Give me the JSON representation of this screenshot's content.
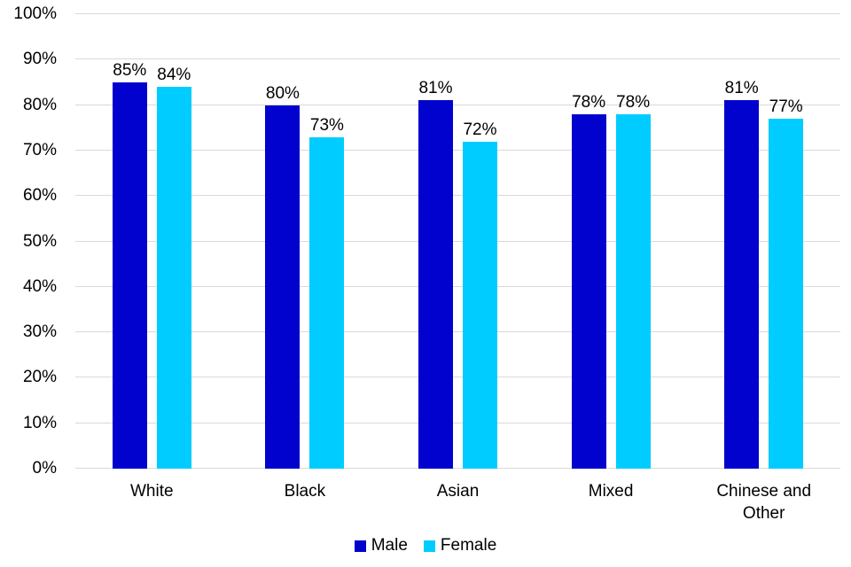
{
  "chart_data": {
    "type": "bar",
    "title": "",
    "categories": [
      "White",
      "Black",
      "Asian",
      "Mixed",
      "Chinese and Other"
    ],
    "series": [
      {
        "name": "Male",
        "color": "#0202CE",
        "values": [
          85,
          80,
          81,
          78,
          81
        ]
      },
      {
        "name": "Female",
        "color": "#00CCFF",
        "values": [
          84,
          73,
          72,
          78,
          77
        ]
      }
    ],
    "data_labels": [
      [
        "85%",
        "80%",
        "81%",
        "78%",
        "81%"
      ],
      [
        "84%",
        "73%",
        "72%",
        "78%",
        "77%"
      ]
    ],
    "value_suffix": "%",
    "y_axis": {
      "min": 0,
      "max": 100,
      "step": 10,
      "tick_labels": [
        "0%",
        "10%",
        "20%",
        "30%",
        "40%",
        "50%",
        "60%",
        "70%",
        "80%",
        "90%",
        "100%"
      ]
    },
    "grid": true,
    "legend_position": "bottom",
    "legend_entries": [
      "Male",
      "Female"
    ],
    "colors": {
      "gridline": "#D9D9D9",
      "axis_line": "#D9D9D9",
      "text": "#000000",
      "background": "#FFFFFF"
    }
  }
}
